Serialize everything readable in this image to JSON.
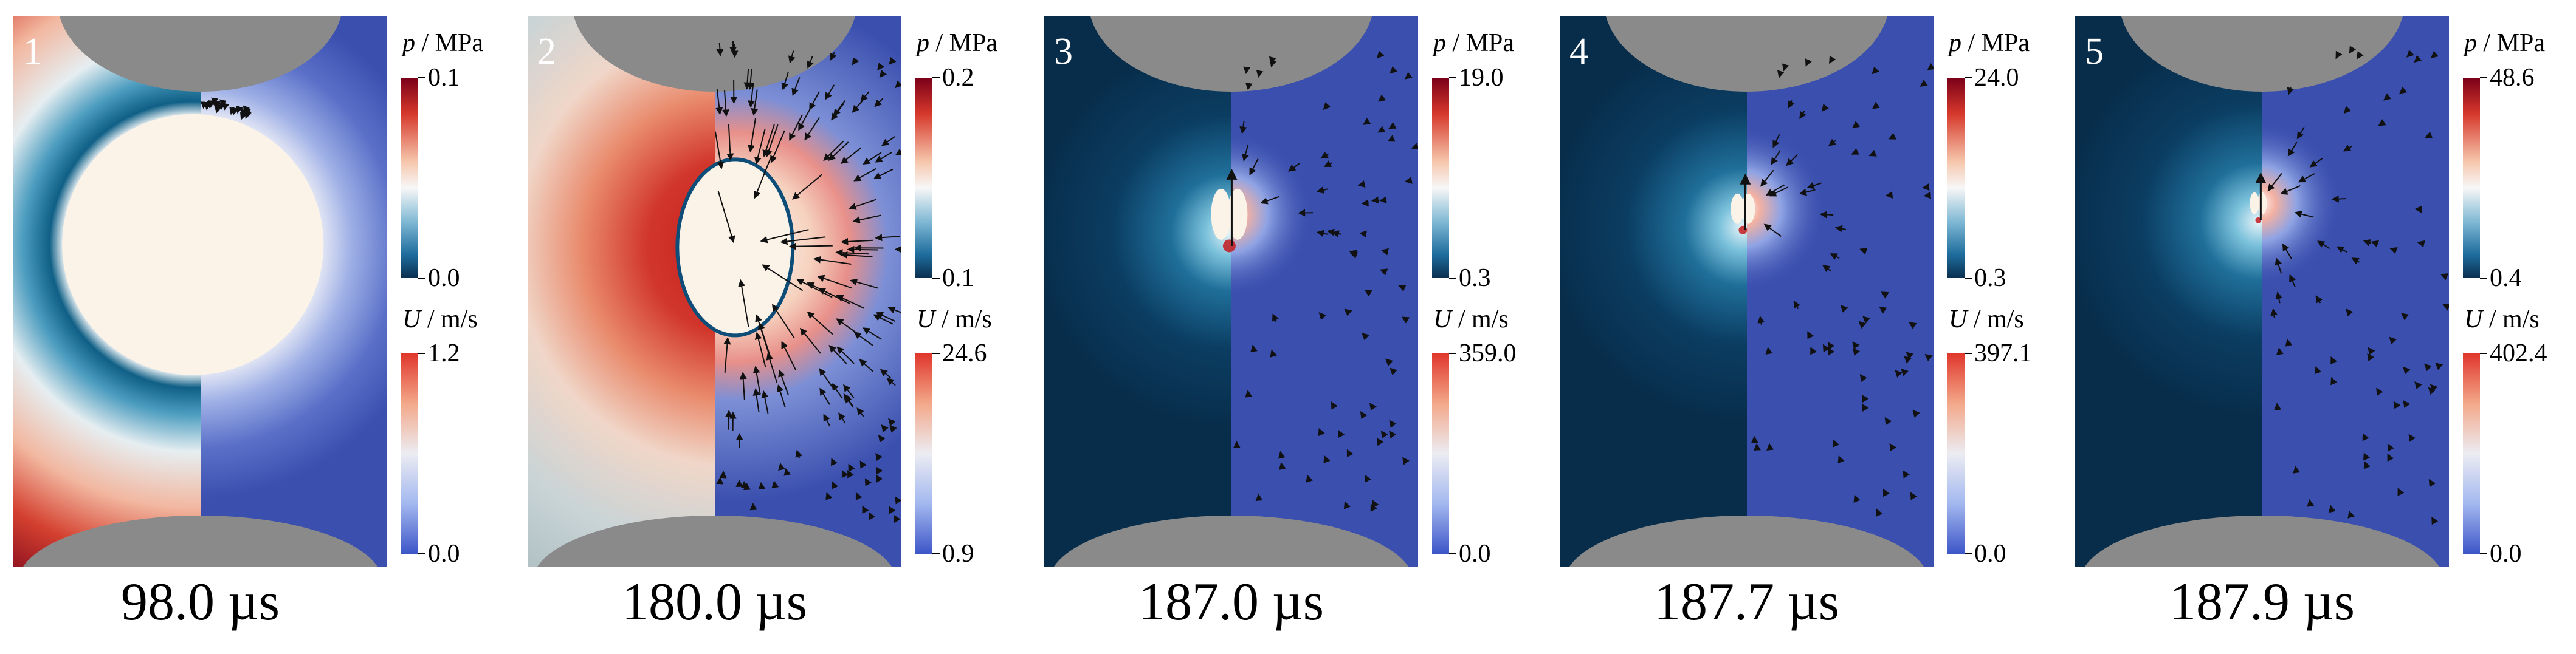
{
  "panels": [
    {
      "number": "1",
      "time": "98.0 µs",
      "pressure": {
        "symbol": "p",
        "unit": "/ MPa",
        "max": "0.1",
        "min": "0.0"
      },
      "velocity": {
        "symbol": "U",
        "unit": "/ m/s",
        "max": "1.2",
        "min": "0.0"
      }
    },
    {
      "number": "2",
      "time": "180.0 µs",
      "pressure": {
        "symbol": "p",
        "unit": "/ MPa",
        "max": "0.2",
        "min": "0.1"
      },
      "velocity": {
        "symbol": "U",
        "unit": "/ m/s",
        "max": "24.6",
        "min": "0.9"
      }
    },
    {
      "number": "3",
      "time": "187.0 µs",
      "pressure": {
        "symbol": "p",
        "unit": "/ MPa",
        "max": "19.0",
        "min": "0.3"
      },
      "velocity": {
        "symbol": "U",
        "unit": "/ m/s",
        "max": "359.0",
        "min": "0.0"
      }
    },
    {
      "number": "4",
      "time": "187.7 µs",
      "pressure": {
        "symbol": "p",
        "unit": "/ MPa",
        "max": "24.0",
        "min": "0.3"
      },
      "velocity": {
        "symbol": "U",
        "unit": "/ m/s",
        "max": "397.1",
        "min": "0.0"
      }
    },
    {
      "number": "5",
      "time": "187.9 µs",
      "pressure": {
        "symbol": "p",
        "unit": "/ MPa",
        "max": "48.6",
        "min": "0.4"
      },
      "velocity": {
        "symbol": "U",
        "unit": "/ m/s",
        "max": "402.4",
        "min": "0.0"
      }
    }
  ],
  "colors": {
    "wall": "#8a8a8a",
    "bubble": "#fbf3e8",
    "velocity_background": "#3a4fae",
    "arrows": "#111111"
  }
}
